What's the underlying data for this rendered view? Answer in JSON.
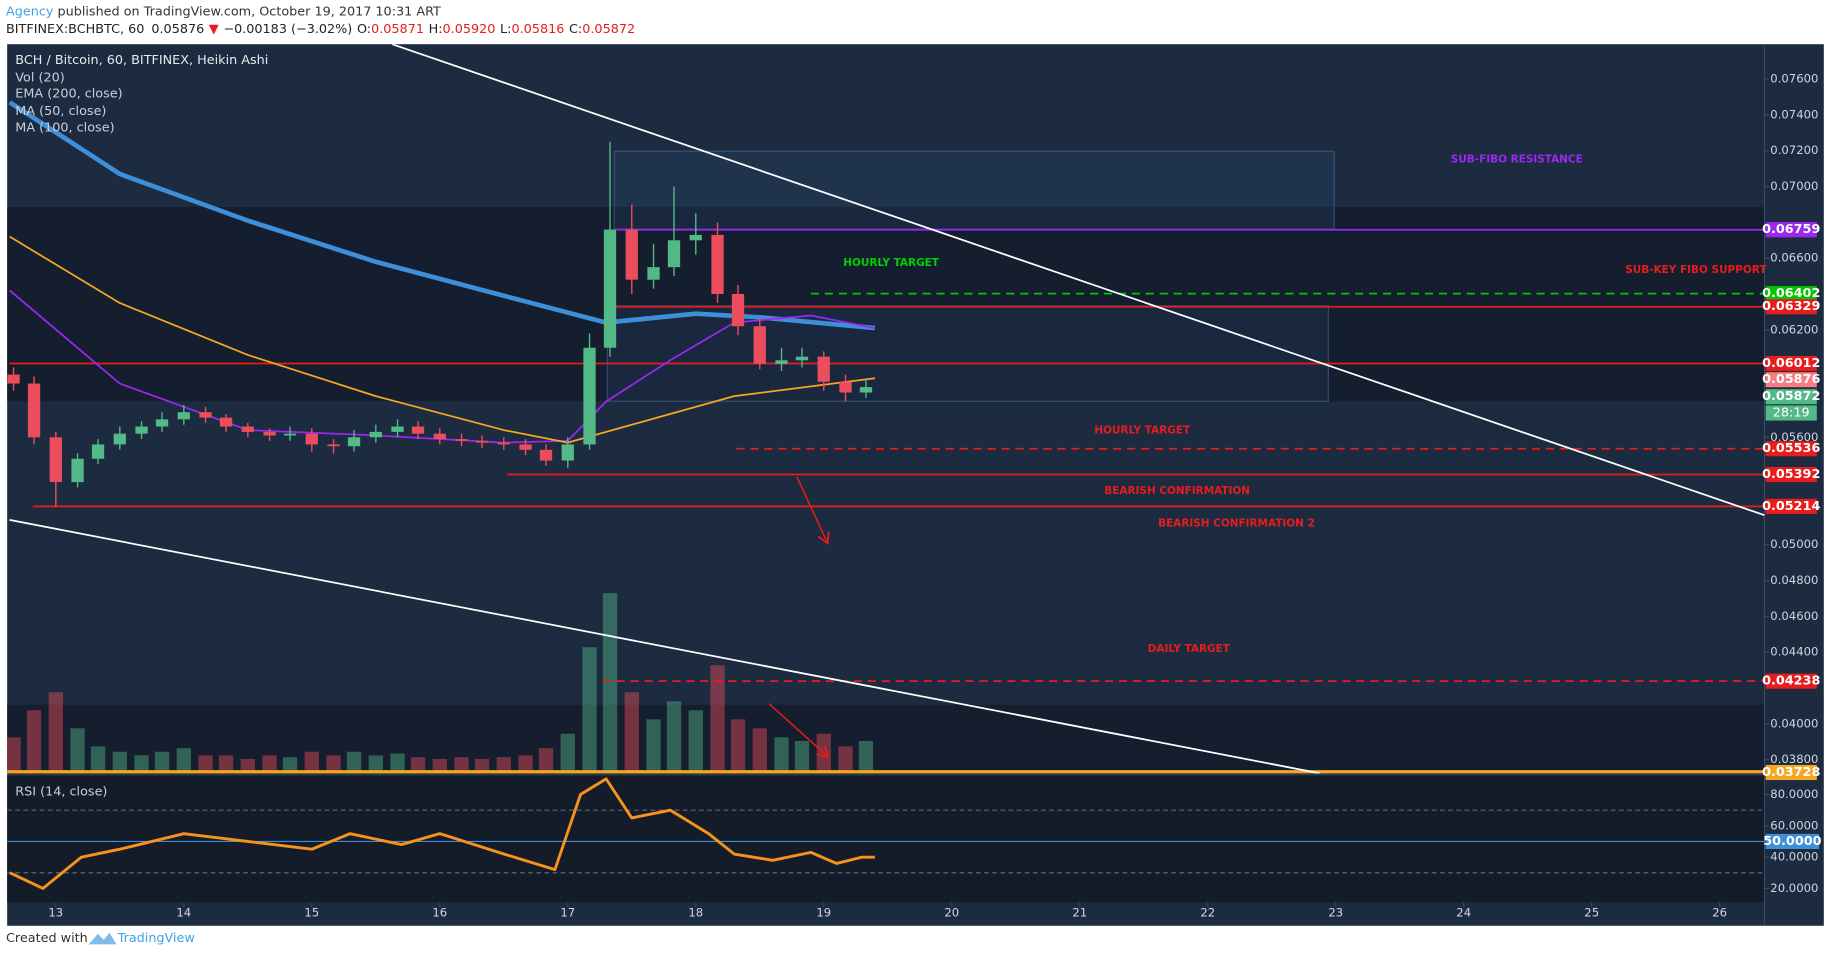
{
  "header": {
    "author": "Agency",
    "published": " published on TradingView.com, October 19, 2017 10:31 ART",
    "symbol": "BITFINEX:BCHBTC, 60",
    "last": "0.05876",
    "change_arrow": "▼",
    "change": "−0.00183 (−3.02%)",
    "ohlc": [
      {
        "key": "O:",
        "value": "0.05871"
      },
      {
        "key": "H:",
        "value": "0.05920"
      },
      {
        "key": "L:",
        "value": "0.05816"
      },
      {
        "key": "C:",
        "value": "0.05872"
      }
    ]
  },
  "footer": {
    "text": "Created with",
    "brand": "TradingView"
  },
  "chart_data": {
    "type": "candlestick",
    "title": "BCH / Bitcoin, 60, BITFINEX, Heikin Ashi",
    "up_color": "#53b987",
    "down_color": "#eb4d5c",
    "x": [
      12.67,
      12.83,
      13.0,
      13.17,
      13.33,
      13.5,
      13.67,
      13.83,
      14.0,
      14.17,
      14.33,
      14.5,
      14.67,
      14.83,
      15.0,
      15.17,
      15.33,
      15.5,
      15.67,
      15.83,
      16.0,
      16.17,
      16.33,
      16.5,
      16.67,
      16.83,
      17.0,
      17.17,
      17.33,
      17.5,
      17.67,
      17.83,
      18.0,
      18.17,
      18.33,
      18.5,
      18.67,
      18.83,
      19.0,
      19.17,
      19.33
    ],
    "open": [
      0.0595,
      0.059,
      0.056,
      0.0535,
      0.0548,
      0.0556,
      0.0562,
      0.0566,
      0.057,
      0.0574,
      0.0571,
      0.0566,
      0.0563,
      0.0561,
      0.0562,
      0.0556,
      0.0555,
      0.056,
      0.0563,
      0.0566,
      0.0562,
      0.0559,
      0.0558,
      0.0557,
      0.0556,
      0.0553,
      0.0547,
      0.0556,
      0.061,
      0.0676,
      0.0648,
      0.0655,
      0.067,
      0.0673,
      0.064,
      0.0622,
      0.0601,
      0.0603,
      0.0605,
      0.0591,
      0.0585
    ],
    "high": [
      0.0599,
      0.0594,
      0.0563,
      0.0551,
      0.0559,
      0.0566,
      0.0569,
      0.0574,
      0.0578,
      0.0577,
      0.0573,
      0.0568,
      0.0565,
      0.0566,
      0.0565,
      0.0559,
      0.0564,
      0.0567,
      0.057,
      0.0569,
      0.0565,
      0.0562,
      0.0561,
      0.056,
      0.0559,
      0.0556,
      0.056,
      0.0618,
      0.0725,
      0.069,
      0.0668,
      0.07,
      0.0685,
      0.068,
      0.0645,
      0.0627,
      0.061,
      0.061,
      0.0608,
      0.0595,
      0.0593
    ],
    "low": [
      0.0586,
      0.0556,
      0.0521,
      0.0532,
      0.0545,
      0.0553,
      0.0559,
      0.0563,
      0.0567,
      0.0568,
      0.0563,
      0.056,
      0.0558,
      0.0558,
      0.0552,
      0.0551,
      0.0552,
      0.0557,
      0.056,
      0.0559,
      0.0556,
      0.0555,
      0.0554,
      0.0553,
      0.055,
      0.0544,
      0.0543,
      0.0553,
      0.0605,
      0.064,
      0.0643,
      0.065,
      0.0662,
      0.0635,
      0.0617,
      0.0598,
      0.0597,
      0.0599,
      0.0586,
      0.058,
      0.0582
    ],
    "close": [
      0.059,
      0.056,
      0.0535,
      0.0548,
      0.0556,
      0.0562,
      0.0566,
      0.057,
      0.0574,
      0.0571,
      0.0566,
      0.0563,
      0.0561,
      0.0562,
      0.0556,
      0.0555,
      0.056,
      0.0563,
      0.0566,
      0.0562,
      0.0559,
      0.0558,
      0.0557,
      0.0556,
      0.0553,
      0.0547,
      0.0556,
      0.061,
      0.0676,
      0.0648,
      0.0655,
      0.067,
      0.0673,
      0.064,
      0.0622,
      0.0601,
      0.0603,
      0.0605,
      0.0591,
      0.0585,
      0.0588
    ],
    "volume": [
      20,
      35,
      45,
      25,
      15,
      12,
      10,
      12,
      14,
      10,
      10,
      8,
      10,
      9,
      12,
      10,
      12,
      10,
      11,
      9,
      8,
      9,
      8,
      9,
      10,
      14,
      22,
      70,
      100,
      45,
      30,
      40,
      35,
      60,
      30,
      25,
      20,
      18,
      22,
      15,
      18
    ],
    "volume_name": "Vol (20)",
    "indicators": [
      {
        "name": "EMA (200, close)",
        "color": "#3d8fd9",
        "width": 4,
        "x": [
          12.64,
          13.5,
          14.5,
          15.5,
          16.5,
          17.3,
          18.0,
          18.5,
          19.4
        ],
        "values": [
          0.0747,
          0.0707,
          0.0681,
          0.0658,
          0.0639,
          0.0624,
          0.0629,
          0.0627,
          0.0621
        ]
      },
      {
        "name": "MA (50, close)",
        "color": "#9c27f0",
        "width": 1.5,
        "x": [
          12.64,
          13.5,
          14.5,
          15.5,
          16.5,
          17.0,
          17.3,
          17.8,
          18.3,
          18.9,
          19.4
        ],
        "values": [
          0.0642,
          0.059,
          0.0564,
          0.0561,
          0.0557,
          0.0558,
          0.058,
          0.0603,
          0.0624,
          0.0628,
          0.0621
        ]
      },
      {
        "name": "MA (100, close)",
        "color": "#f5a623",
        "width": 1.5,
        "x": [
          12.64,
          13.5,
          14.5,
          15.5,
          16.5,
          17.0,
          17.5,
          18.3,
          19.4
        ],
        "values": [
          0.0672,
          0.0635,
          0.0606,
          0.0583,
          0.0564,
          0.0557,
          0.0567,
          0.0583,
          0.0593
        ]
      }
    ],
    "xlim": [
      12.62,
      26.35
    ],
    "xticks": [
      13,
      14,
      15,
      16,
      17,
      18,
      19,
      20,
      21,
      22,
      23,
      24,
      25,
      26
    ],
    "ylim": [
      0.03723,
      0.07795
    ],
    "yticks": [
      {
        "value": 0.076,
        "label": "0.07600"
      },
      {
        "value": 0.074,
        "label": "0.07400"
      },
      {
        "value": 0.072,
        "label": "0.07200"
      },
      {
        "value": 0.07,
        "label": "0.07000"
      },
      {
        "value": 0.066,
        "label": "0.06600"
      },
      {
        "value": 0.062,
        "label": "0.06200"
      },
      {
        "value": 0.056,
        "label": "0.05600"
      },
      {
        "value": 0.05,
        "label": "0.05000"
      },
      {
        "value": 0.048,
        "label": "0.04800"
      },
      {
        "value": 0.046,
        "label": "0.04600"
      },
      {
        "value": 0.044,
        "label": "0.04400"
      },
      {
        "value": 0.04,
        "label": "0.04000"
      },
      {
        "value": 0.038,
        "label": "0.03800"
      }
    ],
    "levels": [
      {
        "value": 0.06759,
        "label": "0.06759",
        "color": "#9c27f0",
        "style": "solid"
      },
      {
        "value": 0.06402,
        "label": "0.06402",
        "color": "#00c800",
        "style": "dashed"
      },
      {
        "value": 0.06329,
        "label": "0.06329",
        "color": "#e81c1c",
        "style": "solid"
      },
      {
        "value": 0.06012,
        "label": "0.06012",
        "color": "#e81c1c",
        "style": "solid"
      },
      {
        "value": 0.05536,
        "label": "0.05536",
        "color": "#e81c1c",
        "style": "dashed"
      },
      {
        "value": 0.05392,
        "label": "0.05392",
        "color": "#e81c1c",
        "style": "solid"
      },
      {
        "value": 0.05214,
        "label": "0.05214",
        "color": "#e81c1c",
        "style": "solid"
      },
      {
        "value": 0.04238,
        "label": "0.04238",
        "color": "#e81c1c",
        "style": "dashed"
      },
      {
        "value": 0.03728,
        "label": "0.03728",
        "color": "#f5a623",
        "style": "thick"
      }
    ],
    "price_badges": [
      {
        "value": 0.05876,
        "label": "0.05876",
        "color": "#f77c80"
      },
      {
        "value": 0.05872,
        "label": "0.05872",
        "color": "#53b987"
      }
    ],
    "countdown": "28:19",
    "annotations": [
      {
        "text": "SUB-FIBO RESISTANCE",
        "color": "#9c27f0"
      },
      {
        "text": "HOURLY TARGET",
        "color": "#00d000"
      },
      {
        "text": "SUB-KEY FIBO SUPPORT",
        "color": "#e81c1c"
      },
      {
        "text": "HOURLY TARGET",
        "color": "#e81c1c"
      },
      {
        "text": "BEARISH CONFIRMATION",
        "color": "#e81c1c"
      },
      {
        "text": "BEARISH CONFIRMATION 2",
        "color": "#e81c1c"
      },
      {
        "text": "DAILY TARGET",
        "color": "#e81c1c"
      }
    ],
    "rsi": {
      "name": "RSI (14, close)",
      "color": "#f7931a",
      "x": [
        12.64,
        12.9,
        13.2,
        13.5,
        14.0,
        14.5,
        15.0,
        15.3,
        15.7,
        16.0,
        16.5,
        16.9,
        17.1,
        17.3,
        17.5,
        17.8,
        18.1,
        18.3,
        18.6,
        18.9,
        19.1,
        19.3,
        19.4
      ],
      "values": [
        30,
        20,
        40,
        45,
        55,
        50,
        45,
        55,
        48,
        55,
        42,
        32,
        80,
        90,
        65,
        70,
        55,
        42,
        38,
        43,
        36,
        40,
        40
      ],
      "ylim": [
        11,
        92
      ],
      "yticks": [
        {
          "value": 80,
          "label": "80.0000"
        },
        {
          "value": 60,
          "label": "60.0000"
        },
        {
          "value": 40,
          "label": "40.0000"
        },
        {
          "value": 20,
          "label": "20.0000"
        }
      ],
      "mid": {
        "value": 50,
        "label": "50.0000"
      },
      "bands": [
        70,
        30
      ]
    }
  }
}
